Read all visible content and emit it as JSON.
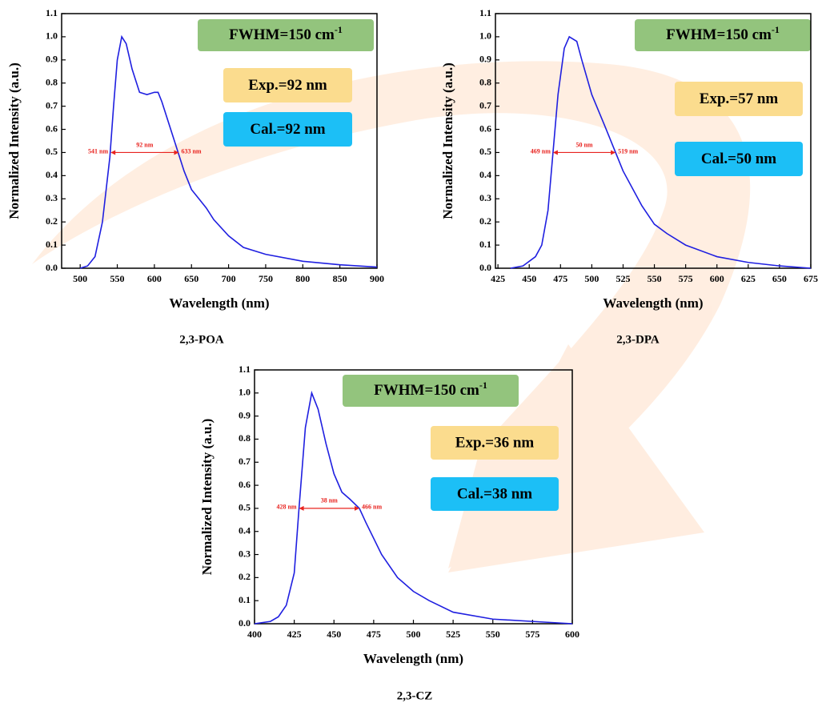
{
  "chart_data": [
    {
      "type": "line",
      "title": "2,3-POA",
      "xlabel": "Wavelength (nm)",
      "ylabel": "Normalized Intensity (a.u.)",
      "x": [
        500,
        510,
        520,
        530,
        540,
        545,
        550,
        556,
        562,
        570,
        580,
        590,
        600,
        605,
        610,
        620,
        630,
        640,
        650,
        660,
        670,
        680,
        700,
        720,
        750,
        800,
        850,
        900
      ],
      "values": [
        0,
        0.01,
        0.05,
        0.2,
        0.48,
        0.7,
        0.9,
        1.0,
        0.97,
        0.86,
        0.76,
        0.75,
        0.76,
        0.76,
        0.72,
        0.62,
        0.52,
        0.42,
        0.34,
        0.3,
        0.26,
        0.21,
        0.14,
        0.09,
        0.06,
        0.03,
        0.015,
        0.005
      ],
      "color": "#1f1fe0",
      "xlim": [
        475,
        900
      ],
      "xticks": [
        500,
        550,
        600,
        650,
        700,
        750,
        800,
        850,
        900
      ],
      "ylim": [
        0,
        1.1
      ],
      "yticks": [
        {
          "value": 0,
          "label": "0.0"
        },
        0.1,
        0.2,
        0.3,
        0.4,
        0.5,
        0.6,
        0.7,
        0.8,
        0.9,
        {
          "value": 1,
          "label": "1.0"
        },
        1.1
      ],
      "fwhm_label": "FWHM=150 cm",
      "fwhm_sup": "-1",
      "fwhm_color": "#93c47d",
      "exp_label": "Exp.=92 nm",
      "exp_color": "#fbdc8e",
      "cal_label": "Cal.=92 nm",
      "cal_color": "#1cbff6",
      "fwhm_arrow": {
        "x": [
          541,
          633
        ],
        "y": 0.5,
        "left_label": "541 nm",
        "width_label": "92 nm",
        "right_label": "633 nm",
        "color": "#e8231f"
      }
    },
    {
      "type": "line",
      "title": "2,3-DPA",
      "xlabel": "Wavelength (nm)",
      "ylabel": "Normalized Intensity (a.u.)",
      "x": [
        435,
        445,
        455,
        460,
        465,
        469,
        473,
        478,
        482,
        488,
        492,
        500,
        510,
        519,
        525,
        540,
        550,
        560,
        575,
        600,
        625,
        650,
        675
      ],
      "values": [
        0,
        0.01,
        0.05,
        0.1,
        0.25,
        0.5,
        0.75,
        0.95,
        1.0,
        0.98,
        0.9,
        0.75,
        0.62,
        0.5,
        0.42,
        0.27,
        0.19,
        0.15,
        0.1,
        0.05,
        0.025,
        0.01,
        0
      ],
      "color": "#1f1fe0",
      "xlim": [
        423,
        675
      ],
      "xticks": [
        425,
        450,
        475,
        500,
        525,
        550,
        575,
        600,
        625,
        650,
        675
      ],
      "ylim": [
        0,
        1.1
      ],
      "yticks": [
        {
          "value": 0,
          "label": "0.0"
        },
        0.1,
        0.2,
        0.3,
        0.4,
        0.5,
        0.6,
        0.7,
        0.8,
        0.9,
        {
          "value": 1,
          "label": "1.0"
        },
        1.1
      ],
      "fwhm_label": "FWHM=150 cm",
      "fwhm_sup": "-1",
      "fwhm_color": "#93c47d",
      "exp_label": "Exp.=57 nm",
      "exp_color": "#fbdc8e",
      "cal_label": "Cal.=50 nm",
      "cal_color": "#1cbff6",
      "fwhm_arrow": {
        "x": [
          469,
          519
        ],
        "y": 0.5,
        "left_label": "469 nm",
        "width_label": "50 nm",
        "right_label": "519 nm",
        "color": "#e8231f"
      }
    },
    {
      "type": "line",
      "title": "2,3-CZ",
      "xlabel": "Wavelength (nm)",
      "ylabel": "Normalized Intensity (a.u.)",
      "x": [
        400,
        410,
        415,
        420,
        425,
        428,
        432,
        436,
        440,
        445,
        450,
        455,
        460,
        466,
        470,
        480,
        490,
        500,
        510,
        525,
        550,
        575,
        600
      ],
      "values": [
        0,
        0.01,
        0.03,
        0.08,
        0.22,
        0.5,
        0.85,
        1.0,
        0.93,
        0.78,
        0.65,
        0.57,
        0.54,
        0.5,
        0.44,
        0.3,
        0.2,
        0.14,
        0.1,
        0.05,
        0.02,
        0.01,
        0
      ],
      "color": "#1f1fe0",
      "xlim": [
        400,
        600
      ],
      "xticks": [
        400,
        425,
        450,
        475,
        500,
        525,
        550,
        575,
        600
      ],
      "ylim": [
        0,
        1.1
      ],
      "yticks": [
        {
          "value": 0,
          "label": "0.0"
        },
        0.1,
        0.2,
        0.3,
        0.4,
        0.5,
        0.6,
        0.7,
        0.8,
        0.9,
        {
          "value": 1,
          "label": "1.0"
        },
        1.1
      ],
      "fwhm_label": "FWHM=150 cm",
      "fwhm_sup": "-1",
      "fwhm_color": "#93c47d",
      "exp_label": "Exp.=36 nm",
      "exp_color": "#fbdc8e",
      "cal_label": "Cal.=38 nm",
      "cal_color": "#1cbff6",
      "fwhm_arrow": {
        "x": [
          428,
          466
        ],
        "y": 0.5,
        "left_label": "428 nm",
        "width_label": "38 nm",
        "right_label": "466 nm",
        "color": "#e8231f"
      }
    }
  ]
}
